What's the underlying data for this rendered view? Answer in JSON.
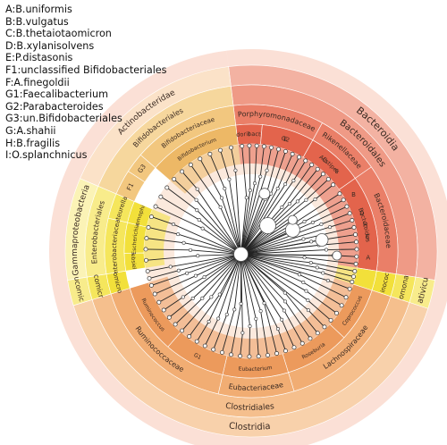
{
  "legend": [
    "A:B.uniformis",
    "B:B.vulgatus",
    "C:B.thetaiotaomicron",
    "D:B.xylanisolvens",
    "E:P.distasonis",
    "F1:unclassified Bifidobacteriales",
    "F:A.finegoldii",
    "G1:Faecalibacterium",
    "G2:Parabacteroides",
    "G3:un.Bifidobacteriales",
    "G:A.shahii",
    "H:B.fragilis",
    "I:O.splanchnicus"
  ],
  "colors": {
    "red_phylum": "#f6c9bd",
    "red_class": "#f3b2a2",
    "red_order": "#ef9a86",
    "red_family": "#ea7f68",
    "red_genus": "#e3644c",
    "orange_phylum": "#fbe2c8",
    "orange_class": "#f8d1ab",
    "orange_order": "#f5bf8d",
    "orange_family": "#f1ad73",
    "orange_genus": "#ec9a5c",
    "amber_order": "#f6d79d",
    "amber_family": "#f2c77f",
    "amber_genus": "#edb866",
    "yellow_phylum": "#fbf3b6",
    "yellow_class": "#f8ec8b",
    "yellow_order": "#f5e65c",
    "yellow_family": "#f2e03a",
    "pale_band": "#fae3c4",
    "inner_ring": "#fbe9dd"
  },
  "clades": [
    {
      "name": "phylum-bacteroidetes",
      "text": "Bacteroidia",
      "a1": 0,
      "a2": 106,
      "band": 5,
      "color": "red_class",
      "label": true,
      "ls": 11
    },
    {
      "name": "order-bacteroidales",
      "text": "Bacteroidales",
      "a1": 0,
      "a2": 106,
      "band": 4,
      "color": "red_order",
      "label": true,
      "ls": 10
    },
    {
      "name": "family-porphyromonadaceae",
      "text": "Porphyromonadaceae",
      "a1": 0,
      "a2": 36,
      "band": 3,
      "color": "red_family",
      "label": true,
      "ls": 8
    },
    {
      "name": "family-rikenellaceae",
      "text": "Rikenellaceae",
      "a1": 36,
      "a2": 62,
      "band": 3,
      "color": "red_family",
      "label": true,
      "ls": 8
    },
    {
      "name": "family-bacteroidaceae",
      "text": "Bacteroidaceae",
      "a1": 62,
      "a2": 106,
      "band": 3,
      "color": "red_family",
      "label": true,
      "ls": 8
    },
    {
      "name": "genus-odoribacter",
      "text": "Odoribacter",
      "a1": 0,
      "a2": 12,
      "band": 2,
      "color": "red_genus",
      "label": true,
      "ls": 6.5
    },
    {
      "name": "genus-parabacteroides",
      "text": "G2",
      "a1": 12,
      "a2": 36,
      "band": 2,
      "color": "red_genus",
      "label": true,
      "ls": 6.5
    },
    {
      "name": "genus-alistipes",
      "text": "Alistipes",
      "a1": 36,
      "a2": 62,
      "band": 2,
      "color": "red_genus",
      "label": true,
      "ls": 6.5
    },
    {
      "name": "genus-bacteroides",
      "text": "Bacteroides",
      "a1": 62,
      "a2": 106,
      "band": 2,
      "color": "red_genus",
      "label": true,
      "ls": 6.5
    },
    {
      "name": "phylum-negativicutes",
      "text": "Negativicutes",
      "a1": 106,
      "a2": 115,
      "band": 5,
      "color": "yellow_class",
      "label": true,
      "ls": 9
    },
    {
      "name": "order-selenomonadales",
      "text": "Selenomonadales",
      "a1": 106,
      "a2": 115,
      "band": 4,
      "color": "yellow_order",
      "label": true,
      "ls": 8
    },
    {
      "name": "family-acidaminococcaceae",
      "text": "Acidaminococcaceae",
      "a1": 106,
      "a2": 115,
      "band": 3,
      "color": "yellow_family",
      "label": true,
      "ls": 7
    },
    {
      "name": "genus-phascolarctobacterium",
      "text": "Phascolarctobacterium",
      "a1": 106,
      "a2": 115,
      "band": 2,
      "color": "yellow_family",
      "label": false,
      "ls": 6
    },
    {
      "name": "class-clostridia",
      "text": "Clostridia",
      "a1": 115,
      "a2": 260,
      "band": 5,
      "color": "orange_class",
      "label": true,
      "ls": 10
    },
    {
      "name": "order-clostridiales",
      "text": "Clostridiales",
      "a1": 115,
      "a2": 260,
      "band": 4,
      "color": "orange_order",
      "label": true,
      "ls": 9
    },
    {
      "name": "family-lachnospiraceae",
      "text": "Lachnospiraceae",
      "a1": 115,
      "a2": 170,
      "band": 3,
      "color": "orange_family",
      "label": true,
      "ls": 8
    },
    {
      "name": "family-eubacteriaceae",
      "text": "Eubacteriaceae",
      "a1": 170,
      "a2": 200,
      "band": 3,
      "color": "orange_family",
      "label": true,
      "ls": 8
    },
    {
      "name": "family-ruminococcaceae",
      "text": "Ruminococcaceae",
      "a1": 200,
      "a2": 260,
      "band": 3,
      "color": "orange_family",
      "label": true,
      "ls": 8
    },
    {
      "name": "genus-coprococcus",
      "text": "Coprococcus",
      "a1": 115,
      "a2": 140,
      "band": 2,
      "color": "orange_genus",
      "label": true,
      "ls": 6
    },
    {
      "name": "genus-roseburia",
      "text": "Roseburia",
      "a1": 140,
      "a2": 170,
      "band": 2,
      "color": "orange_genus",
      "label": true,
      "ls": 6
    },
    {
      "name": "genus-eubacterium",
      "text": "Eubacterium",
      "a1": 170,
      "a2": 200,
      "band": 2,
      "color": "orange_genus",
      "label": true,
      "ls": 6
    },
    {
      "name": "genus-faecalibacterium",
      "text": "G1",
      "a1": 200,
      "a2": 228,
      "band": 2,
      "color": "orange_genus",
      "label": true,
      "ls": 6
    },
    {
      "name": "genus-ruminococcus",
      "text": "Ruminococcus",
      "a1": 228,
      "a2": 260,
      "band": 2,
      "color": "orange_genus",
      "label": true,
      "ls": 6
    },
    {
      "name": "phylum-verrucomicrobia",
      "text": "Verrucomicrobia",
      "a1": 260,
      "a2": 268,
      "band": 5,
      "color": "yellow_class",
      "label": true,
      "ls": 8
    },
    {
      "name": "class-verrucomicrobiae",
      "text": "Verrucomicrobiae",
      "a1": 260,
      "a2": 268,
      "band": 4,
      "color": "yellow_order",
      "label": true,
      "ls": 8
    },
    {
      "name": "order-verrucomicrobiales",
      "text": "Verrucomicrobiales",
      "a1": 260,
      "a2": 268,
      "band": 3,
      "color": "yellow_family",
      "label": true,
      "ls": 7
    },
    {
      "name": "phylum-gammaproteobacteria",
      "text": "Gammaproteobacteria",
      "a1": 268,
      "a2": 300,
      "band": 5,
      "color": "yellow_phylum",
      "label": true,
      "ls": 9
    },
    {
      "name": "order-enterobacteriales",
      "text": "Enterobacteriales",
      "a1": 268,
      "a2": 300,
      "band": 4,
      "color": "yellow_class",
      "label": true,
      "ls": 8
    },
    {
      "name": "family-enterobacteriaceae",
      "text": "Enterobacteriaceae",
      "a1": 268,
      "a2": 290,
      "band": 3,
      "color": "yellow_order",
      "label": true,
      "ls": 7
    },
    {
      "name": "order-pasteurellales",
      "text": "Pasteurellales",
      "a1": 290,
      "a2": 300,
      "band": 3,
      "color": "yellow_order",
      "label": true,
      "ls": 7
    },
    {
      "name": "genus-escherichia",
      "text": "Escherichia",
      "a1": 276,
      "a2": 290,
      "band": 2,
      "color": "yellow_family",
      "label": true,
      "ls": 6
    },
    {
      "name": "genus-klebsiella",
      "text": "Klebsiella",
      "a1": 268,
      "a2": 276,
      "band": 2,
      "color": "yellow_family",
      "label": true,
      "ls": 6
    },
    {
      "name": "family-pasteurellaceae",
      "text": "Haemophilus",
      "a1": 290,
      "a2": 300,
      "band": 2,
      "color": "yellow_family",
      "label": true,
      "ls": 6
    },
    {
      "name": "class-actinobacteria",
      "text": "Actinobacteridae",
      "a1": 300,
      "a2": 360,
      "band": 5,
      "color": "orange_phylum",
      "label": true,
      "ls": 9
    },
    {
      "name": "order-bifidobacteriales",
      "text": "Bifidobacteriales",
      "a1": 300,
      "a2": 360,
      "band": 4,
      "color": "amber_order",
      "label": true,
      "ls": 8
    },
    {
      "name": "family-bifidobacteriaceae",
      "text": "Bifidobacteriaceae",
      "a1": 318,
      "a2": 360,
      "band": 3,
      "color": "amber_family",
      "label": true,
      "ls": 7
    },
    {
      "name": "genus-bifidobacterium",
      "text": "Bifidobacterium",
      "a1": 318,
      "a2": 360,
      "band": 2,
      "color": "amber_genus",
      "label": true,
      "ls": 6
    },
    {
      "name": "clade-f1",
      "text": "F1",
      "a1": 300,
      "a2": 310,
      "band": 3,
      "color": "amber_family",
      "label": true,
      "ls": 7
    },
    {
      "name": "clade-g3",
      "text": "G3",
      "a1": 310,
      "a2": 318,
      "band": 3,
      "color": "amber_family",
      "label": true,
      "ls": 7
    }
  ],
  "leaf_labels": [
    {
      "text": "A",
      "a": 100
    },
    {
      "text": "B",
      "a": 68
    },
    {
      "text": "C",
      "a": 90
    },
    {
      "text": "D",
      "a": 78
    },
    {
      "text": "H",
      "a": 84
    },
    {
      "text": "G",
      "a": 46
    },
    {
      "text": "F",
      "a": 54
    },
    {
      "text": "E",
      "a": 24
    },
    {
      "text": "I",
      "a": 6
    }
  ],
  "tree": {
    "root": {
      "a": 260,
      "r": 12
    },
    "big_nodes": [
      {
        "a": 70,
        "r": 52,
        "s": 8
      },
      {
        "a": 88,
        "r": 80,
        "s": 7
      },
      {
        "a": 40,
        "r": 34,
        "s": 9
      },
      {
        "a": 20,
        "r": 66,
        "s": 6
      },
      {
        "a": 100,
        "r": 96,
        "s": 5
      },
      {
        "a": 60,
        "r": 58,
        "s": 5
      }
    ],
    "leaf_angles": [
      2,
      6,
      10,
      14,
      18,
      22,
      26,
      30,
      34,
      38,
      42,
      46,
      50,
      54,
      58,
      64,
      68,
      72,
      76,
      80,
      84,
      88,
      92,
      96,
      100,
      104,
      108,
      111,
      114,
      118,
      123,
      128,
      133,
      138,
      143,
      148,
      153,
      158,
      163,
      168,
      173,
      178,
      183,
      188,
      193,
      198,
      203,
      208,
      213,
      218,
      223,
      228,
      233,
      238,
      243,
      248,
      253,
      258,
      262,
      266,
      272,
      278,
      284,
      290,
      296,
      302,
      308,
      314,
      320,
      326,
      332,
      338,
      344,
      350,
      356
    ]
  }
}
